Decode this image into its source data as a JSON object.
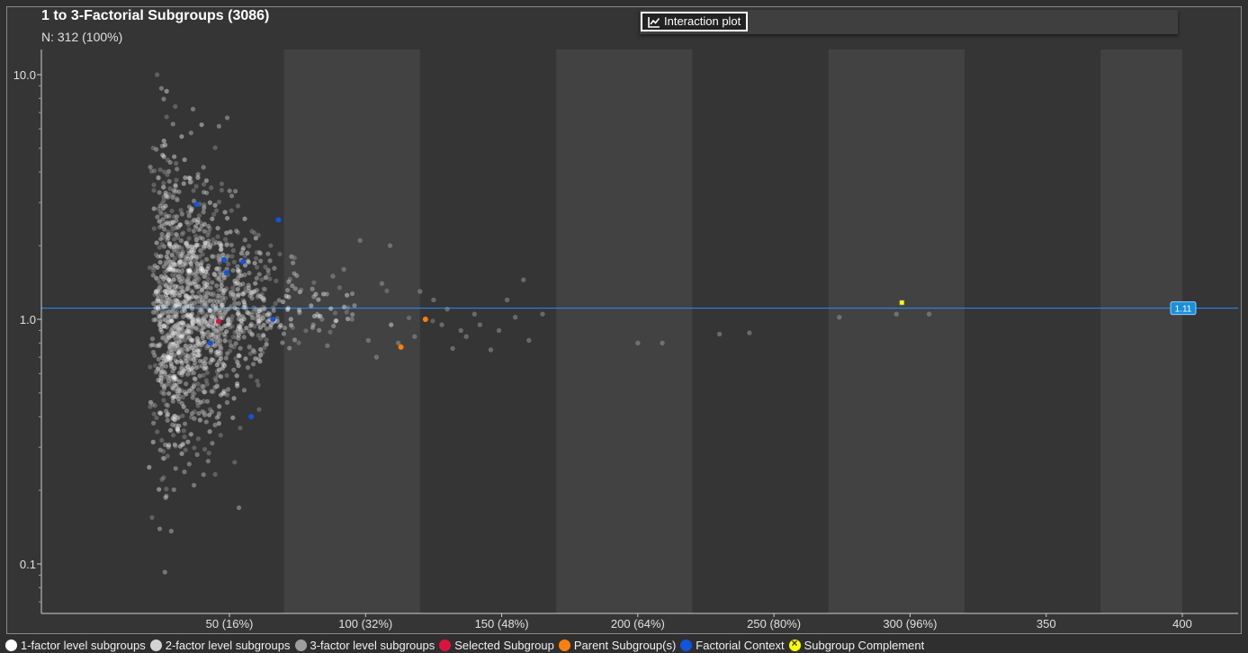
{
  "header": {
    "title": "1 to 3-Factorial Subgroups (3086)",
    "subtitle": "N: 312 (100%)"
  },
  "toolbar": {
    "interaction_plot_label": "Interaction plot",
    "interaction_plot_icon": "line-chart-icon"
  },
  "reference_line": {
    "value": 1.11,
    "label": "1.11",
    "color": "#1e90ff"
  },
  "legend": [
    {
      "label": "1-factor level subgroups",
      "color": "#ffffff",
      "key": "factor1"
    },
    {
      "label": "2-factor level subgroups",
      "color": "#d3d3d3",
      "key": "factor2"
    },
    {
      "label": "3-factor level subgroups",
      "color": "#9e9e9e",
      "key": "factor3"
    },
    {
      "label": "Selected Subgroup",
      "color": "#dc143c",
      "key": "selected"
    },
    {
      "label": "Parent Subgroup(s)",
      "color": "#ff7f0e",
      "key": "parent"
    },
    {
      "label": "Factorial Context",
      "color": "#1155dd",
      "key": "context"
    },
    {
      "label": "Subgroup Complement",
      "color": "#ffff00",
      "key": "complement"
    }
  ],
  "chart_data": {
    "type": "scatter",
    "title": "1 to 3-Factorial Subgroups (3086)",
    "x_scale": "linear",
    "y_scale": "log",
    "xlim": [
      0,
      420
    ],
    "ylim": [
      0.06,
      12
    ],
    "x_ticks": [
      {
        "value": 50,
        "label": "50 (16%)"
      },
      {
        "value": 100,
        "label": "100 (32%)"
      },
      {
        "value": 150,
        "label": "150 (48%)"
      },
      {
        "value": 200,
        "label": "200 (64%)"
      },
      {
        "value": 250,
        "label": "250 (80%)"
      },
      {
        "value": 300,
        "label": "300 (96%)"
      },
      {
        "value": 350,
        "label": "350"
      },
      {
        "value": 400,
        "label": "400"
      }
    ],
    "y_ticks": [
      {
        "value": 10,
        "label": "10.0"
      },
      {
        "value": 1,
        "label": "1.0"
      },
      {
        "value": 0.1,
        "label": "0.1"
      }
    ],
    "band_stripes": [
      [
        70,
        120
      ],
      [
        170,
        220
      ],
      [
        270,
        320
      ],
      [
        370,
        420
      ]
    ],
    "cloud": {
      "count": 1500,
      "x_center": 33,
      "x_spread": 26,
      "y_log_center": 0.04,
      "y_log_sigma": 0.3
    },
    "series": [
      {
        "key": "factor3",
        "points": [
          [
            130,
            1.1
          ],
          [
            140,
            1.05
          ],
          [
            152,
            1.2
          ],
          [
            155,
            1.02
          ],
          [
            158,
            1.45
          ],
          [
            160,
            0.82
          ],
          [
            165,
            1.05
          ],
          [
            135,
            0.9
          ],
          [
            142,
            0.95
          ],
          [
            120,
            1.3
          ],
          [
            118,
            0.85
          ],
          [
            112,
            0.8
          ],
          [
            125,
            1.2
          ],
          [
            128,
            0.95
          ],
          [
            106,
            1.4
          ],
          [
            109,
            2.0
          ],
          [
            98,
            2.1
          ],
          [
            104,
            0.7
          ],
          [
            146,
            0.75
          ],
          [
            149,
            0.9
          ],
          [
            200,
            0.8
          ],
          [
            209,
            0.8
          ],
          [
            230,
            0.87
          ],
          [
            241,
            0.88
          ],
          [
            274,
            1.02
          ],
          [
            295,
            1.05
          ],
          [
            307,
            1.05
          ],
          [
            88,
            1.5
          ],
          [
            92,
            1.6
          ],
          [
            95,
            1.0
          ],
          [
            101,
            0.82
          ],
          [
            84,
            1.0
          ],
          [
            86,
            0.78
          ],
          [
            132,
            0.76
          ],
          [
            137,
            0.85
          ]
        ]
      },
      {
        "key": "selected",
        "points": [
          [
            46,
            0.98
          ]
        ]
      },
      {
        "key": "parent",
        "points": [
          [
            113,
            0.77
          ],
          [
            122,
            1.0
          ]
        ]
      },
      {
        "key": "context",
        "points": [
          [
            38,
            2.95
          ],
          [
            48,
            1.75
          ],
          [
            49,
            1.55
          ],
          [
            55,
            1.72
          ],
          [
            68,
            2.55
          ],
          [
            66,
            1.0
          ],
          [
            58,
            0.4
          ],
          [
            43,
            0.8
          ]
        ]
      },
      {
        "key": "complement",
        "points": [
          [
            297,
            1.17
          ]
        ]
      }
    ]
  }
}
